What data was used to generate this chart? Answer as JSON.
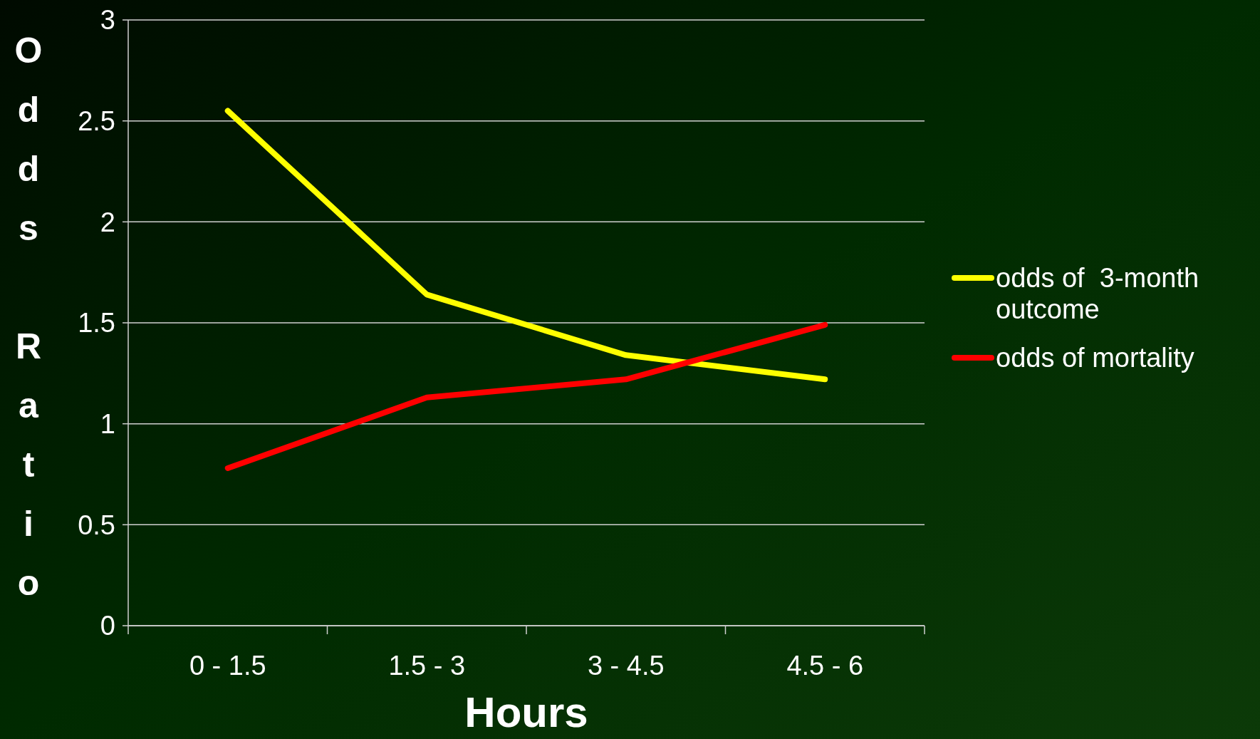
{
  "chart_data": {
    "type": "line",
    "xlabel": "Hours",
    "ylabel": "Odds Ratio",
    "categories": [
      "0 - 1.5",
      "1.5 - 3",
      "3 - 4.5",
      "4.5 - 6"
    ],
    "series": [
      {
        "name": "odds of  3-month outcome",
        "color": "#ffff00",
        "values": [
          2.55,
          1.64,
          1.34,
          1.22
        ]
      },
      {
        "name": "odds of mortality",
        "color": "#ff0000",
        "values": [
          0.78,
          1.13,
          1.22,
          1.49
        ]
      }
    ],
    "ylim": [
      0,
      3
    ],
    "yticks": [
      0,
      0.5,
      1,
      1.5,
      2,
      2.5,
      3
    ],
    "grid": "y",
    "legend": "right",
    "marker": "none",
    "line_style": "solid"
  }
}
